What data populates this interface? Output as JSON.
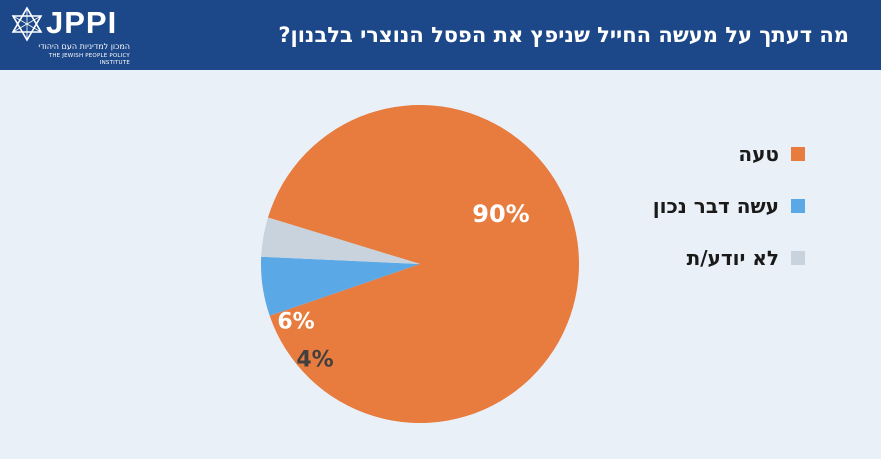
{
  "header": {
    "title": "מה דעתך על מעשה החייל שניפץ את הפסל הנוצרי בלבנון?",
    "logo_text": "JPPI",
    "logo_hebrew": "המכון למדיניות העם היהודי",
    "logo_english": "THE JEWISH PEOPLE POLICY INSTITUTE",
    "logo_icon": "star-of-david-icon"
  },
  "colors": {
    "header_bg": "#1c4788",
    "background": "#eaf0f8",
    "orange": "#e87b3e",
    "blue": "#5aa9e6",
    "gray": "#c9d3de"
  },
  "chart_data": {
    "type": "pie",
    "slices": [
      {
        "label": "טעה",
        "value": 90,
        "display": "90%",
        "color": "#e87b3e",
        "label_color": "#ffffff"
      },
      {
        "label": "עשה דבר נכון",
        "value": 6,
        "display": "6%",
        "color": "#5aa9e6",
        "label_color": "#ffffff"
      },
      {
        "label": "לא יודע/ת",
        "value": 4,
        "display": "4%",
        "color": "#c9d3de",
        "label_color": "#404040"
      }
    ],
    "legend_position": "right"
  }
}
